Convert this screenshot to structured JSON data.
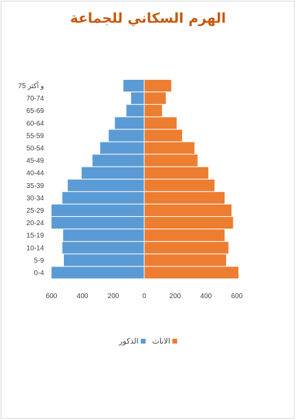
{
  "chart_data": {
    "type": "bar",
    "orientation": "horizontal",
    "title": "الهرم السكاني للجماعة",
    "categories": [
      "0-4",
      "5-9",
      "10-14",
      "15-19",
      "20-24",
      "25-29",
      "30-34",
      "35-39",
      "40-44",
      "45-49",
      "50-54",
      "55-59",
      "60-64",
      "65-69",
      "70-74",
      "75 و أكثر"
    ],
    "series": [
      {
        "name": "الذكور",
        "color": "#5b9bd5",
        "side": "left",
        "values": [
          600,
          520,
          530,
          525,
          600,
          600,
          530,
          495,
          405,
          335,
          285,
          230,
          190,
          115,
          85,
          135
        ]
      },
      {
        "name": "الاناث",
        "color": "#ed7d31",
        "side": "right",
        "values": [
          610,
          530,
          545,
          520,
          575,
          565,
          520,
          455,
          415,
          345,
          325,
          245,
          210,
          115,
          140,
          175
        ]
      }
    ],
    "x_tick_labels": [
      "600",
      "400",
      "200",
      "0",
      "200",
      "400",
      "600"
    ],
    "xlim": [
      -600,
      600
    ],
    "grid": false,
    "legend_position": "bottom"
  }
}
